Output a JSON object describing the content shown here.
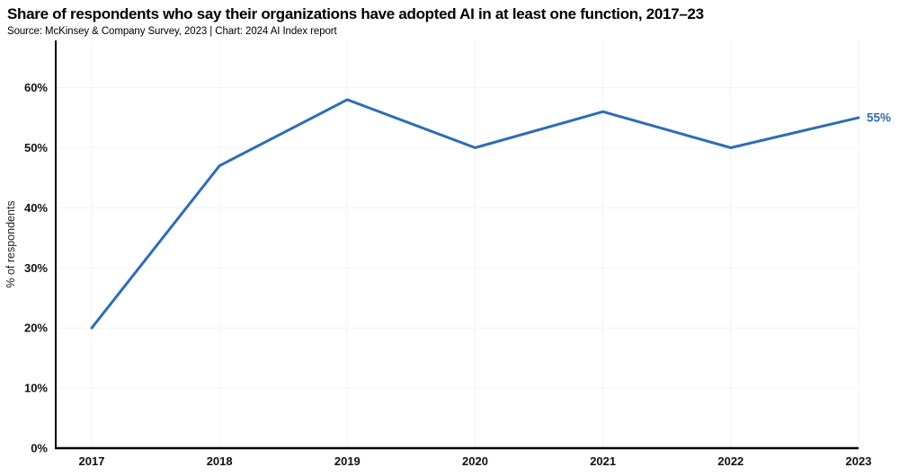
{
  "header": {
    "title": "Share of respondents who say their organizations have adopted AI in at least one function, 2017–23",
    "source": "Source: McKinsey & Company Survey, 2023 | Chart: 2024 AI Index report"
  },
  "chart_data": {
    "type": "line",
    "title": "Share of respondents who say their organizations have adopted AI in at least one function, 2017–23",
    "categories": [
      "2017",
      "2018",
      "2019",
      "2020",
      "2021",
      "2022",
      "2023"
    ],
    "values": [
      20,
      47,
      58,
      50,
      56,
      50,
      55
    ],
    "xlabel": "",
    "ylabel": "% of respondents",
    "ylim": [
      0,
      60
    ],
    "yticks": [
      0,
      10,
      20,
      30,
      40,
      50,
      60
    ],
    "ytick_labels": [
      "0%",
      "10%",
      "20%",
      "30%",
      "40%",
      "50%",
      "60%"
    ],
    "grid": "on",
    "legend_position": "none",
    "end_label": "55%",
    "colors": {
      "line": "#2e6db4",
      "end_label": "#2e6db4",
      "grid": "#f3f3f3",
      "axis": "#000000",
      "text": "#111111"
    }
  }
}
